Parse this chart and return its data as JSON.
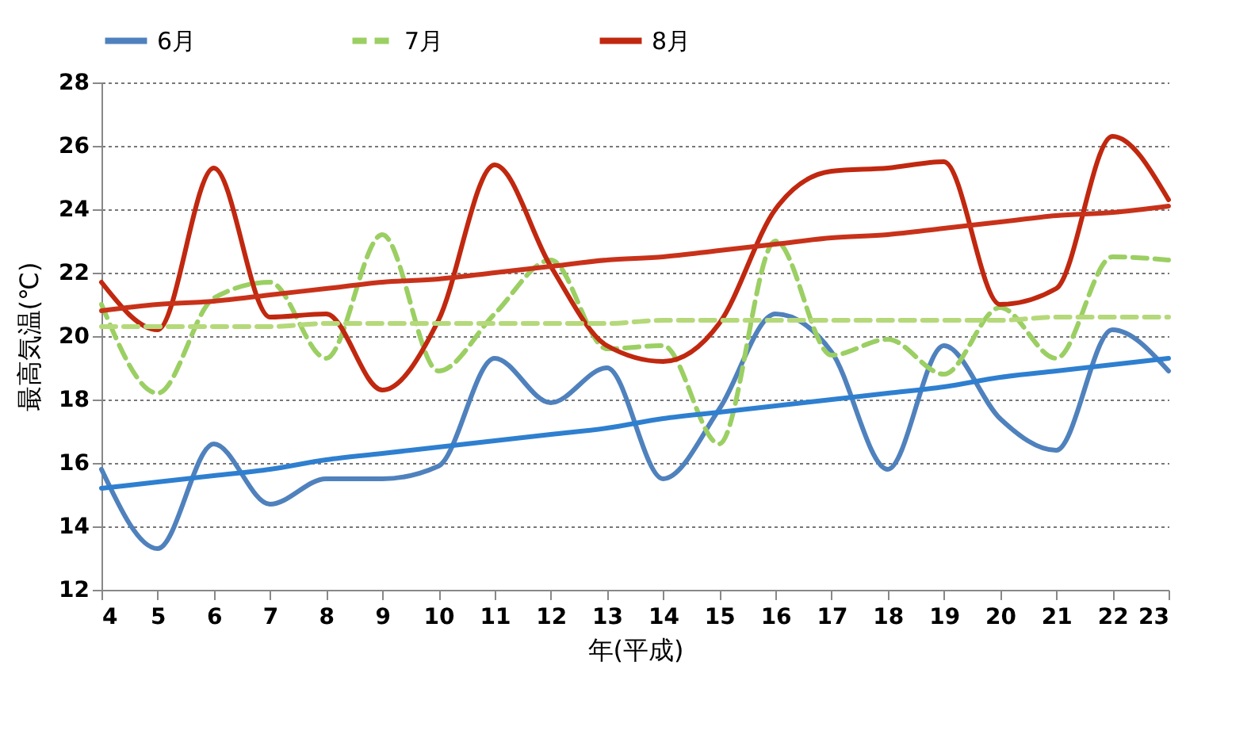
{
  "chart_data": {
    "type": "line",
    "xlabel": "年(平成)",
    "ylabel": "最高気温(℃)",
    "x": [
      4,
      5,
      6,
      7,
      8,
      9,
      10,
      11,
      12,
      13,
      14,
      15,
      16,
      17,
      18,
      19,
      20,
      21,
      22,
      23
    ],
    "xlim": [
      4,
      23
    ],
    "xticks": [
      4,
      5,
      6,
      7,
      8,
      9,
      10,
      11,
      12,
      13,
      14,
      15,
      16,
      17,
      18,
      19,
      20,
      21,
      22,
      23
    ],
    "ylim": [
      12,
      28
    ],
    "yticks": [
      12,
      14,
      16,
      18,
      20,
      22,
      24,
      26,
      28
    ],
    "grid": "y",
    "legend": "top",
    "series": [
      {
        "name": "6月",
        "color": "#4f81bd",
        "line_style": "solid",
        "values": [
          15.8,
          13.3,
          16.6,
          14.7,
          15.5,
          15.5,
          15.9,
          19.3,
          17.9,
          19.0,
          15.5,
          17.7,
          20.7,
          19.5,
          15.8,
          19.7,
          17.4,
          16.4,
          20.2,
          18.9
        ]
      },
      {
        "name": "7月",
        "color": "#9bcf63",
        "line_style": "dashed",
        "values": [
          21.0,
          18.2,
          21.2,
          21.7,
          19.3,
          23.2,
          18.9,
          20.7,
          22.4,
          19.6,
          19.7,
          16.6,
          23.0,
          19.4,
          19.9,
          18.8,
          20.9,
          19.3,
          22.5,
          22.4
        ]
      },
      {
        "name": "8月",
        "color": "#c0280f",
        "line_style": "solid",
        "values": [
          21.7,
          20.2,
          25.3,
          20.6,
          20.7,
          18.3,
          20.5,
          25.4,
          22.2,
          19.7,
          19.2,
          20.4,
          24.0,
          25.2,
          25.3,
          25.5,
          21.0,
          21.5,
          26.3,
          24.3
        ]
      },
      {
        "type": "line",
        "color": "#2e7fd0",
        "line_style": "solid",
        "values": [
          15.2,
          15.4,
          15.6,
          15.8,
          16.1,
          16.3,
          16.5,
          16.7,
          16.9,
          17.1,
          17.4,
          17.6,
          17.8,
          18.0,
          18.2,
          18.4,
          18.7,
          18.9,
          19.1,
          19.3
        ]
      },
      {
        "type": "line",
        "color": "#b5d97a",
        "line_style": "dashed",
        "values": [
          20.3,
          20.3,
          20.3,
          20.3,
          20.4,
          20.4,
          20.4,
          20.4,
          20.4,
          20.4,
          20.5,
          20.5,
          20.5,
          20.5,
          20.5,
          20.5,
          20.5,
          20.6,
          20.6,
          20.6
        ]
      },
      {
        "type": "line",
        "color": "#c8321a",
        "line_style": "solid",
        "values": [
          20.8,
          21.0,
          21.1,
          21.3,
          21.5,
          21.7,
          21.8,
          22.0,
          22.2,
          22.4,
          22.5,
          22.7,
          22.9,
          23.1,
          23.2,
          23.4,
          23.6,
          23.8,
          23.9,
          24.1
        ]
      }
    ]
  }
}
